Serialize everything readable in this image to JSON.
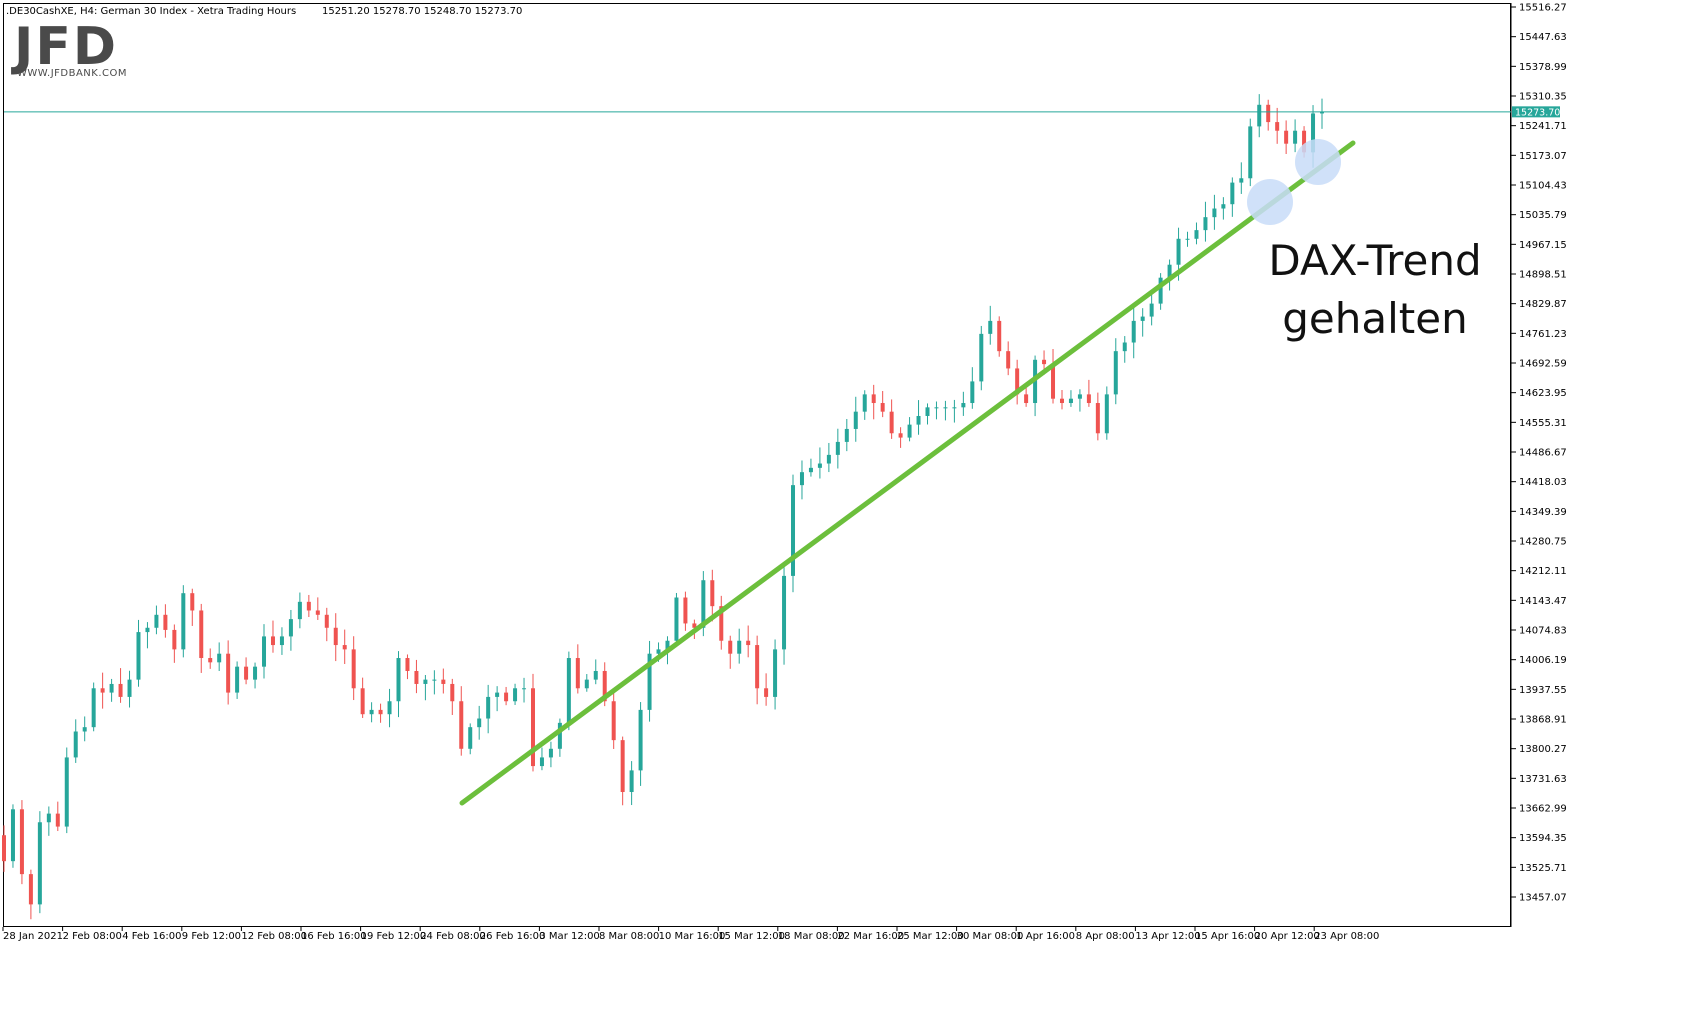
{
  "header": {
    "symbol": ".DE30CashXE, H4:  German 30 Index  - Xetra Trading Hours",
    "ohlc": "15251.20 15278.70 15248.70 15273.70"
  },
  "logo": {
    "text": "JFD",
    "sub": "WWW.JFDBANK.COM"
  },
  "annotation": {
    "line1": "DAX-Trend",
    "line2": "gehalten"
  },
  "colors": {
    "bull": "#26a69a",
    "bear": "#ef5350",
    "trendline": "#6cbf3c",
    "price_line": "#26a69a",
    "highlight": "#c8dcf8"
  },
  "chart_data": {
    "type": "candlestick",
    "y_tick_labels": [
      "15516.27",
      "15447.63",
      "15378.99",
      "15310.35",
      "15241.71",
      "15173.07",
      "15104.43",
      "15035.79",
      "14967.15",
      "14898.51",
      "14829.87",
      "14761.23",
      "14692.59",
      "14623.95",
      "14555.31",
      "14486.67",
      "14418.03",
      "14349.39",
      "14280.75",
      "14212.11",
      "14143.47",
      "14074.83",
      "14006.19",
      "13937.55",
      "13868.91",
      "13800.27",
      "13731.63",
      "13662.99",
      "13594.35",
      "13525.71",
      "13457.07"
    ],
    "x_tick_labels": [
      "28 Jan 2021",
      "2 Feb 08:00",
      "4 Feb 16:00",
      "9 Feb 12:00",
      "12 Feb 08:00",
      "16 Feb 16:00",
      "19 Feb 12:00",
      "24 Feb 08:00",
      "26 Feb 16:00",
      "3 Mar 12:00",
      "8 Mar 08:00",
      "10 Mar 16:00",
      "15 Mar 12:00",
      "18 Mar 08:00",
      "22 Mar 16:00",
      "25 Mar 12:00",
      "30 Mar 08:00",
      "1 Apr 16:00",
      "8 Apr 08:00",
      "13 Apr 12:00",
      "15 Apr 16:00",
      "20 Apr 12:00",
      "23 Apr 08:00"
    ],
    "ylim": [
      13425,
      15525
    ],
    "current_price": 15273.7,
    "current_price_label": "15273.70",
    "bar_count": 148,
    "closes": [
      13540,
      13660,
      13510,
      13440,
      13630,
      13650,
      13620,
      13780,
      13840,
      13850,
      13940,
      13930,
      13950,
      13920,
      13960,
      14070,
      14080,
      14110,
      14075,
      14030,
      14160,
      14120,
      14010,
      14000,
      14020,
      13930,
      13990,
      13960,
      13990,
      14060,
      14040,
      14060,
      14100,
      14140,
      14120,
      14110,
      14080,
      14040,
      14030,
      13940,
      13880,
      13890,
      13880,
      13910,
      14010,
      13980,
      13950,
      13960,
      13960,
      13950,
      13910,
      13800,
      13850,
      13870,
      13920,
      13930,
      13910,
      13940,
      13940,
      13760,
      13780,
      13800,
      13860,
      14010,
      13940,
      13960,
      13980,
      13910,
      13820,
      13700,
      13750,
      13890,
      14020,
      14030,
      14050,
      14150,
      14090,
      14080,
      14190,
      14130,
      14050,
      14020,
      14050,
      14040,
      13940,
      13920,
      14030,
      14200,
      14410,
      14440,
      14450,
      14460,
      14480,
      14510,
      14540,
      14580,
      14620,
      14600,
      14580,
      14530,
      14520,
      14550,
      14570,
      14590,
      14590,
      14590,
      14590,
      14600,
      14650,
      14760,
      14790,
      14720,
      14680,
      14620,
      14600,
      14700,
      14690,
      14610,
      14600,
      14610,
      14620,
      14600,
      14530,
      14620,
      14720,
      14740,
      14790,
      14800,
      14830,
      14890,
      14920,
      14980,
      14980,
      15000,
      15030,
      15050,
      15060,
      15110,
      15120,
      15240,
      15290,
      15250,
      15230,
      15200,
      15230,
      15180,
      15270,
      15273.7
    ]
  }
}
